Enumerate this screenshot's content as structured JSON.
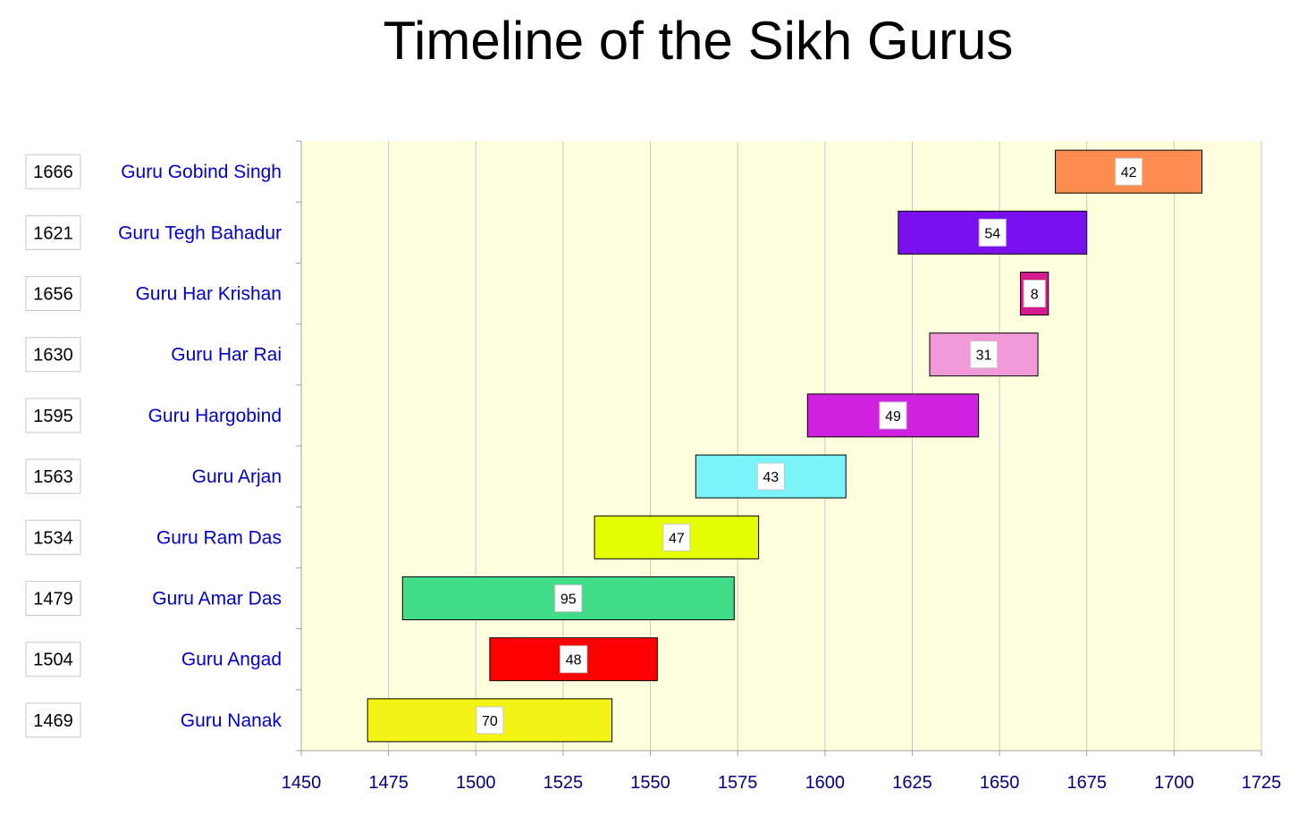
{
  "chart_data": {
    "type": "bar",
    "orientation": "horizontal-range",
    "title": "Timeline of the Sikh Gurus",
    "xlabel": "",
    "ylabel": "",
    "xlim": [
      1450,
      1725
    ],
    "xticks": [
      1450,
      1475,
      1500,
      1525,
      1550,
      1575,
      1600,
      1625,
      1650,
      1675,
      1700,
      1725
    ],
    "grid": true,
    "legend": "none",
    "colors": {
      "plot_background": "#FFFFDD",
      "label_text": "#0000CC",
      "tick_text": "#000080",
      "gridline": "#C8C8C8"
    },
    "gurus": [
      {
        "name": "Guru Gobind Singh",
        "start": 1666,
        "duration": 42,
        "color": "#FF8C50"
      },
      {
        "name": "Guru Tegh Bahadur",
        "start": 1621,
        "duration": 54,
        "color": "#7A0FF0"
      },
      {
        "name": "Guru Har Krishan",
        "start": 1656,
        "duration": 8,
        "color": "#D41A8C"
      },
      {
        "name": "Guru Har Rai",
        "start": 1630,
        "duration": 31,
        "color": "#F09AD8"
      },
      {
        "name": "Guru Hargobind",
        "start": 1595,
        "duration": 49,
        "color": "#D020E0"
      },
      {
        "name": "Guru Arjan",
        "start": 1563,
        "duration": 43,
        "color": "#7AF4FA"
      },
      {
        "name": "Guru Ram Das",
        "start": 1534,
        "duration": 47,
        "color": "#E4FF00"
      },
      {
        "name": "Guru Amar Das",
        "start": 1479,
        "duration": 95,
        "color": "#40DC88"
      },
      {
        "name": "Guru Angad",
        "start": 1504,
        "duration": 48,
        "color": "#FF0000"
      },
      {
        "name": "Guru Nanak",
        "start": 1469,
        "duration": 70,
        "color": "#F4F414"
      }
    ]
  }
}
